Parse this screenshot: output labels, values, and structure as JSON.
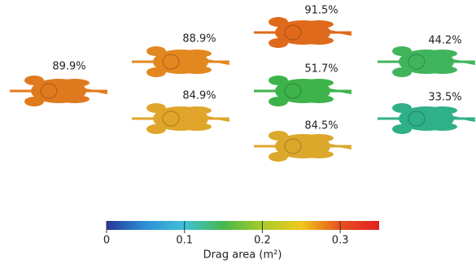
{
  "riders": [
    {
      "label": "89.9%",
      "color": "#e07a1e"
    },
    {
      "label": "88.9%",
      "color": "#e3871f"
    },
    {
      "label": "84.9%",
      "color": "#e0a52a"
    },
    {
      "label": "91.5%",
      "color": "#df6a1c"
    },
    {
      "label": "51.7%",
      "color": "#3db34a"
    },
    {
      "label": "84.5%",
      "color": "#dca82c"
    },
    {
      "label": "44.2%",
      "color": "#40b45c"
    },
    {
      "label": "33.5%",
      "color": "#2fb088"
    }
  ],
  "colorbar": {
    "label": "Drag area (m²)",
    "clim": [
      0,
      0.35
    ],
    "ticks": [
      0,
      0.1,
      0.2,
      0.3
    ],
    "colors": [
      "#26379a",
      "#2f8fd6",
      "#3fc0d8",
      "#45b84a",
      "#a8cc2a",
      "#f0c81e",
      "#e8501e",
      "#e02020"
    ]
  }
}
